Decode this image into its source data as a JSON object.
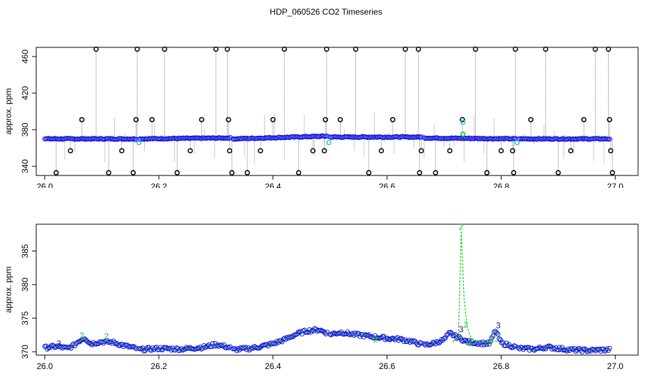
{
  "title": "HDP_060526  CO2 Timeseries",
  "colors": {
    "black": "#000000",
    "blue": "#1010e0",
    "cyan": "#22c8e0",
    "green": "#14c814",
    "navy": "#101090",
    "gray": "#7a7a7a"
  },
  "chart_data": [
    {
      "type": "scatter",
      "title": "HDP_060526  CO2 Timeseries",
      "xlabel": "",
      "ylabel": "approx. ppm",
      "xlim": [
        26.0,
        27.0
      ],
      "ylim": [
        330,
        470
      ],
      "xticks": [
        "26.0",
        "26.2",
        "26.4",
        "26.6",
        "26.8",
        "27.0"
      ],
      "yticks": [
        "340",
        "380",
        "420",
        "460"
      ],
      "grid": false,
      "base_series": {
        "name": "",
        "color": "blue",
        "segments": [
          {
            "x_start": 26.0,
            "x_end": 26.16,
            "y_start": 370,
            "y_end": 370
          },
          {
            "x_start": 26.165,
            "x_end": 26.325,
            "y_start": 370,
            "y_end": 371
          },
          {
            "x_start": 26.33,
            "x_end": 26.495,
            "y_start": 370,
            "y_end": 373
          },
          {
            "x_start": 26.5,
            "x_end": 26.66,
            "y_start": 372,
            "y_end": 372
          },
          {
            "x_start": 26.665,
            "x_end": 26.825,
            "y_start": 371,
            "y_end": 370
          },
          {
            "x_start": 26.83,
            "x_end": 26.99,
            "y_start": 370,
            "y_end": 370
          }
        ]
      },
      "outliers": [
        {
          "x": 26.02,
          "y": 333
        },
        {
          "x": 26.045,
          "y": 357
        },
        {
          "x": 26.065,
          "y": 391
        },
        {
          "x": 26.09,
          "y": 468
        },
        {
          "x": 26.112,
          "y": 333
        },
        {
          "x": 26.135,
          "y": 357
        },
        {
          "x": 26.155,
          "y": 333
        },
        {
          "x": 26.16,
          "y": 391
        },
        {
          "x": 26.162,
          "y": 468
        },
        {
          "x": 26.188,
          "y": 391
        },
        {
          "x": 26.21,
          "y": 468
        },
        {
          "x": 26.232,
          "y": 333
        },
        {
          "x": 26.255,
          "y": 357
        },
        {
          "x": 26.275,
          "y": 391
        },
        {
          "x": 26.3,
          "y": 468
        },
        {
          "x": 26.32,
          "y": 468
        },
        {
          "x": 26.322,
          "y": 391
        },
        {
          "x": 26.324,
          "y": 357
        },
        {
          "x": 26.328,
          "y": 333
        },
        {
          "x": 26.355,
          "y": 333
        },
        {
          "x": 26.378,
          "y": 357
        },
        {
          "x": 26.4,
          "y": 391
        },
        {
          "x": 26.42,
          "y": 468
        },
        {
          "x": 26.445,
          "y": 333
        },
        {
          "x": 26.47,
          "y": 357
        },
        {
          "x": 26.49,
          "y": 357
        },
        {
          "x": 26.492,
          "y": 391
        },
        {
          "x": 26.494,
          "y": 468
        },
        {
          "x": 26.518,
          "y": 391
        },
        {
          "x": 26.545,
          "y": 468
        },
        {
          "x": 26.568,
          "y": 333
        },
        {
          "x": 26.59,
          "y": 357
        },
        {
          "x": 26.61,
          "y": 391
        },
        {
          "x": 26.632,
          "y": 468
        },
        {
          "x": 26.655,
          "y": 468
        },
        {
          "x": 26.657,
          "y": 333
        },
        {
          "x": 26.66,
          "y": 357
        },
        {
          "x": 26.685,
          "y": 333
        },
        {
          "x": 26.71,
          "y": 357
        },
        {
          "x": 26.732,
          "y": 391
        },
        {
          "x": 26.755,
          "y": 468
        },
        {
          "x": 26.775,
          "y": 333
        },
        {
          "x": 26.8,
          "y": 357
        },
        {
          "x": 26.82,
          "y": 357
        },
        {
          "x": 26.822,
          "y": 333
        },
        {
          "x": 26.825,
          "y": 468
        },
        {
          "x": 26.852,
          "y": 391
        },
        {
          "x": 26.878,
          "y": 468
        },
        {
          "x": 26.9,
          "y": 333
        },
        {
          "x": 26.922,
          "y": 357
        },
        {
          "x": 26.945,
          "y": 391
        },
        {
          "x": 26.965,
          "y": 468
        },
        {
          "x": 26.988,
          "y": 468
        },
        {
          "x": 26.99,
          "y": 391
        },
        {
          "x": 26.992,
          "y": 357
        },
        {
          "x": 26.995,
          "y": 333
        }
      ],
      "cyan_points": [
        {
          "x": 26.165,
          "y": 366
        },
        {
          "x": 26.498,
          "y": 366
        },
        {
          "x": 26.733,
          "y": 388
        },
        {
          "x": 26.828,
          "y": 366
        }
      ],
      "green_points": [
        {
          "x": 26.733,
          "y": 375
        }
      ]
    },
    {
      "type": "line",
      "title": "",
      "xlabel": "",
      "ylabel": "approx. ppm",
      "xlim": [
        26.0,
        27.0
      ],
      "ylim": [
        369.5,
        389
      ],
      "xticks": [
        "26.0",
        "26.2",
        "26.4",
        "26.6",
        "26.8",
        "27.0"
      ],
      "yticks": [
        "370",
        "375",
        "380",
        "385"
      ],
      "grid": false,
      "series": [
        {
          "name": "",
          "color": "blue",
          "segments": [
            {
              "x": [
                26.0,
                26.02,
                26.04,
                26.05,
                26.06,
                26.07,
                26.08,
                26.1,
                26.12,
                26.14,
                26.16
              ],
              "y": [
                370.6,
                370.8,
                370.5,
                370.9,
                371.6,
                372.1,
                371.2,
                371.5,
                371.4,
                370.9,
                370.5
              ]
            },
            {
              "x": [
                26.165,
                26.2,
                26.24,
                26.28,
                26.3,
                26.325
              ],
              "y": [
                370.3,
                370.5,
                370.4,
                370.7,
                371.1,
                370.6
              ]
            },
            {
              "x": [
                26.33,
                26.36,
                26.38,
                26.4,
                26.42,
                26.44,
                26.46,
                26.48,
                26.495
              ],
              "y": [
                370.3,
                370.5,
                370.8,
                371.2,
                371.8,
                372.6,
                373.1,
                373.3,
                372.8
              ]
            },
            {
              "x": [
                26.5,
                26.52,
                26.54,
                26.56,
                26.58,
                26.6,
                26.62,
                26.64,
                26.66
              ],
              "y": [
                372.6,
                372.9,
                372.6,
                372.4,
                372.2,
                372.0,
                371.9,
                371.6,
                371.1
              ]
            },
            {
              "x": [
                26.665,
                26.68,
                26.7,
                26.71,
                26.72,
                26.74,
                26.76,
                26.78,
                26.79,
                26.8,
                26.825
              ],
              "y": [
                371.0,
                371.2,
                371.8,
                372.8,
                372.3,
                371.5,
                371.3,
                371.2,
                373.2,
                371.3,
                370.7
              ]
            },
            {
              "x": [
                26.83,
                26.86,
                26.88,
                26.9,
                26.92,
                26.95,
                26.99
              ],
              "y": [
                370.5,
                370.4,
                370.7,
                370.5,
                370.3,
                370.2,
                370.3
              ]
            }
          ]
        },
        {
          "name": "",
          "color": "green",
          "segments": [
            {
              "x": [
                26.715,
                26.725,
                26.73,
                26.735,
                26.74,
                26.745,
                26.75,
                26.77,
                26.79,
                26.8
              ],
              "y": [
                371.5,
                372.0,
                388.0,
                378.0,
                374.0,
                372.5,
                371.8,
                371.4,
                371.6,
                371.2
              ]
            }
          ]
        }
      ],
      "annotations": [
        {
          "text": "2",
          "x": 26.73,
          "y": 388.2,
          "color": "green"
        },
        {
          "text": "2",
          "x": 26.738,
          "y": 373.6,
          "color": "green"
        },
        {
          "text": "2",
          "x": 26.745,
          "y": 370.9,
          "color": "green"
        },
        {
          "text": "2",
          "x": 26.065,
          "y": 372.0,
          "color": "green"
        },
        {
          "text": "2",
          "x": 26.108,
          "y": 371.9,
          "color": "green"
        },
        {
          "text": "2",
          "x": 26.58,
          "y": 371.4,
          "color": "green"
        },
        {
          "text": "2",
          "x": 26.782,
          "y": 371.5,
          "color": "green"
        },
        {
          "text": "3",
          "x": 26.795,
          "y": 373.5,
          "color": "navy"
        },
        {
          "text": "3",
          "x": 26.025,
          "y": 370.8,
          "color": "navy"
        },
        {
          "text": "3",
          "x": 26.73,
          "y": 372.9,
          "color": "navy"
        }
      ]
    }
  ]
}
